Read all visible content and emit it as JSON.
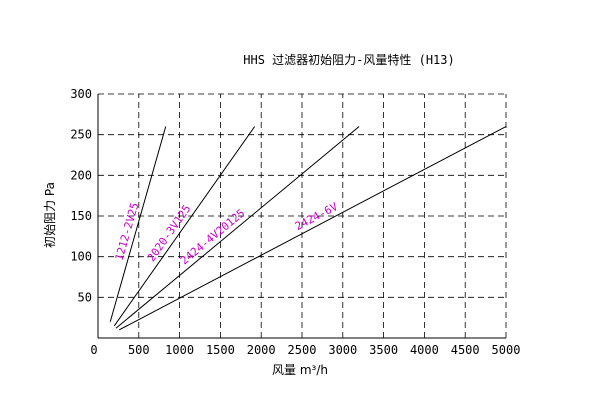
{
  "chart_data": {
    "type": "line",
    "title": "HHS 过滤器初始阻力-风量特性 (H13)",
    "xlabel": "风量 m³/h",
    "ylabel": "初始阻力 Pa",
    "xlim": [
      0,
      5000
    ],
    "ylim": [
      0,
      300
    ],
    "x_ticks": [
      "0",
      "500",
      "1000",
      "1500",
      "2000",
      "2500",
      "3000",
      "3500",
      "4000",
      "4500",
      "5000"
    ],
    "y_ticks": [
      "50",
      "100",
      "150",
      "200",
      "250",
      "300"
    ],
    "grid": true,
    "label_color": "#cc00cc",
    "line_color": "#000000",
    "series": [
      {
        "name": "1212-2V25",
        "x": [
          150,
          830
        ],
        "y": [
          20,
          260
        ]
      },
      {
        "name": "2020-3V125",
        "x": [
          200,
          1920
        ],
        "y": [
          15,
          260
        ]
      },
      {
        "name": "2424-4V20125",
        "x": [
          220,
          3200
        ],
        "y": [
          12,
          260
        ]
      },
      {
        "name": "2424-6V",
        "x": [
          260,
          5000
        ],
        "y": [
          10,
          260
        ]
      }
    ]
  }
}
